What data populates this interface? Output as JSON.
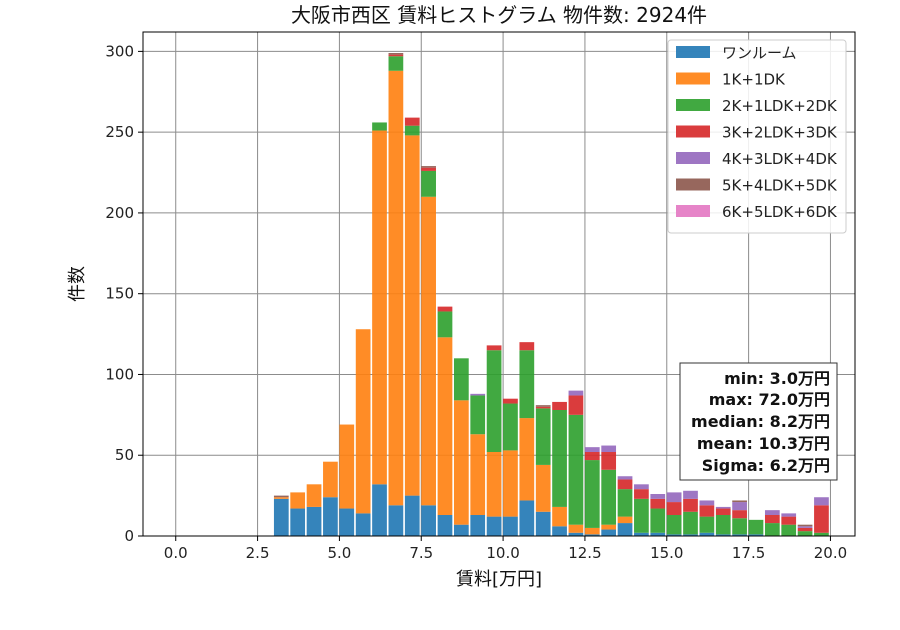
{
  "chart_data": {
    "type": "bar",
    "stacked": true,
    "title": "大阪市西区 賃料ヒストグラム  物件数: 2924件",
    "xlabel": "賃料[万円]",
    "ylabel": "件数",
    "xlim": [
      -1.0,
      20.75
    ],
    "ylim": [
      0,
      312
    ],
    "grid": true,
    "legend_position": "top-right",
    "x_ticks": [
      0.0,
      2.5,
      5.0,
      7.5,
      10.0,
      12.5,
      15.0,
      17.5,
      20.0
    ],
    "x_tick_labels": [
      "0.0",
      "2.5",
      "5.0",
      "7.5",
      "10.0",
      "12.5",
      "15.0",
      "17.5",
      "20.0"
    ],
    "y_ticks": [
      0,
      50,
      100,
      150,
      200,
      250,
      300
    ],
    "y_tick_labels": [
      "0",
      "50",
      "100",
      "150",
      "200",
      "250",
      "300"
    ],
    "bin_width": 0.5,
    "x": [
      3.0,
      3.5,
      4.0,
      4.5,
      5.0,
      5.5,
      6.0,
      6.5,
      7.0,
      7.5,
      8.0,
      8.5,
      9.0,
      9.5,
      10.0,
      10.5,
      11.0,
      11.5,
      12.0,
      12.5,
      13.0,
      13.5,
      14.0,
      14.5,
      15.0,
      15.5,
      16.0,
      16.5,
      17.0,
      17.5,
      18.0,
      18.5,
      19.0,
      19.5
    ],
    "series": [
      {
        "name": "ワンルーム",
        "color": "#1f77b4",
        "values": [
          23,
          17,
          18,
          24,
          17,
          14,
          32,
          19,
          25,
          19,
          13,
          7,
          13,
          12,
          12,
          22,
          15,
          6,
          2,
          1,
          4,
          8,
          2,
          2,
          1,
          1,
          2,
          1,
          1,
          1,
          0,
          0,
          0,
          0
        ]
      },
      {
        "name": "1K+1DK",
        "color": "#ff7f0e",
        "values": [
          1,
          10,
          14,
          22,
          52,
          114,
          219,
          269,
          223,
          191,
          110,
          77,
          50,
          40,
          41,
          51,
          29,
          12,
          5,
          4,
          3,
          4,
          0,
          0,
          0,
          0,
          0,
          0,
          0,
          0,
          0,
          0,
          0,
          0
        ]
      },
      {
        "name": "2K+1LDK+2DK",
        "color": "#2ca02c",
        "values": [
          0,
          0,
          0,
          0,
          0,
          0,
          5,
          9,
          6,
          16,
          16,
          26,
          24,
          63,
          29,
          42,
          35,
          60,
          68,
          42,
          34,
          17,
          21,
          15,
          12,
          14,
          10,
          12,
          10,
          9,
          8,
          7,
          3,
          2
        ]
      },
      {
        "name": "3K+2LDK+3DK",
        "color": "#d62728",
        "values": [
          0,
          0,
          0,
          0,
          0,
          0,
          0,
          1,
          5,
          2,
          3,
          0,
          0,
          3,
          3,
          5,
          1,
          5,
          12,
          5,
          11,
          6,
          6,
          6,
          8,
          8,
          7,
          4,
          5,
          0,
          5,
          5,
          2,
          17
        ]
      },
      {
        "name": "4K+3LDK+4DK",
        "color": "#9467bd",
        "values": [
          0,
          0,
          0,
          0,
          0,
          0,
          0,
          0,
          0,
          0,
          0,
          0,
          1,
          0,
          0,
          0,
          0,
          0,
          3,
          3,
          4,
          2,
          3,
          3,
          6,
          5,
          3,
          1,
          5,
          0,
          3,
          2,
          1,
          5
        ]
      },
      {
        "name": "5K+4LDK+5DK",
        "color": "#8c564b",
        "values": [
          1,
          0,
          0,
          0,
          0,
          0,
          0,
          1,
          0,
          1,
          0,
          0,
          0,
          0,
          0,
          0,
          1,
          0,
          0,
          0,
          0,
          0,
          0,
          0,
          0,
          0,
          0,
          0,
          1,
          0,
          0,
          0,
          1,
          0
        ]
      },
      {
        "name": "6K+5LDK+6DK",
        "color": "#e377c2",
        "values": [
          0,
          0,
          0,
          0,
          0,
          0,
          0,
          0,
          0,
          0,
          0,
          0,
          0,
          0,
          0,
          0,
          0,
          0,
          0,
          0,
          0,
          0,
          0,
          0,
          0,
          0,
          0,
          0,
          0,
          0,
          0,
          0,
          0,
          0
        ]
      }
    ],
    "annotations": [
      "min: 3.0万円",
      "max: 72.0万円",
      "median: 8.2万円",
      "mean: 10.3万円",
      "Sigma: 6.2万円"
    ]
  }
}
